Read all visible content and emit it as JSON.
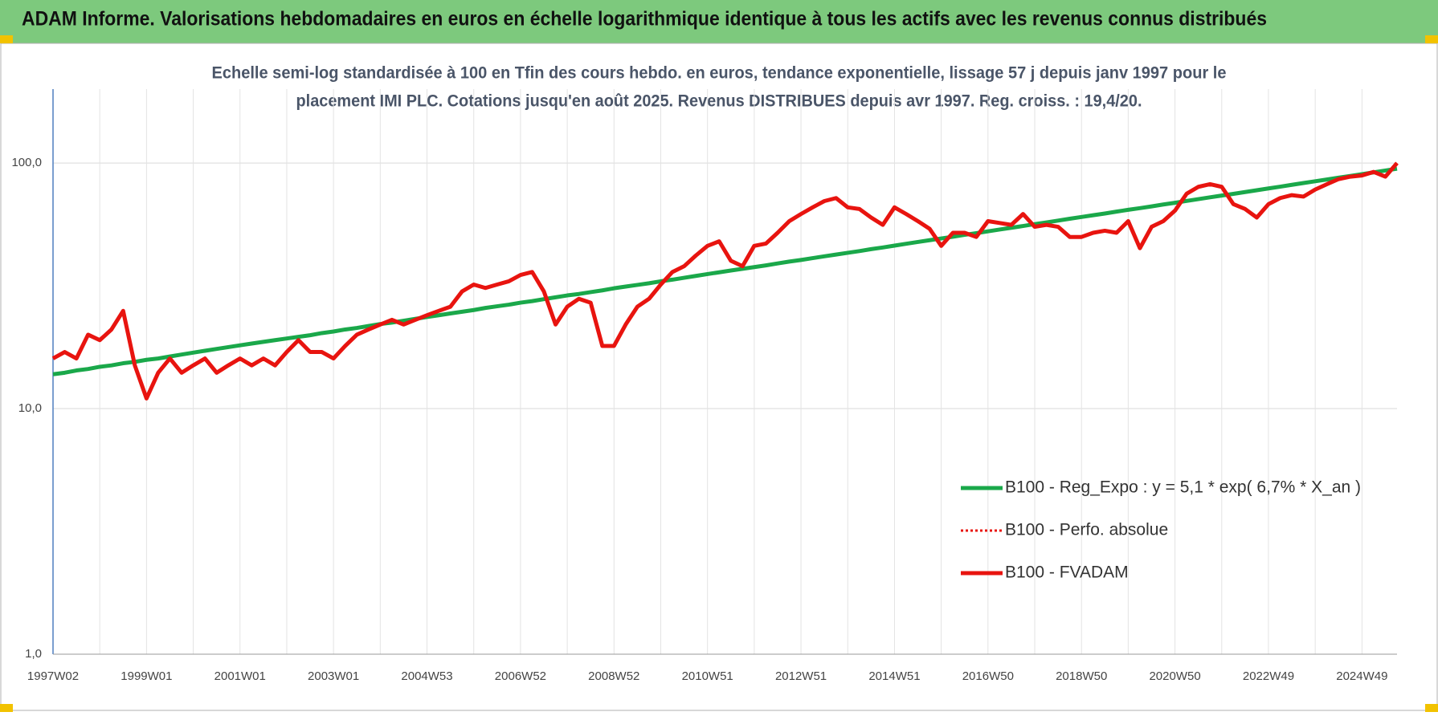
{
  "chart_data": {
    "type": "line",
    "title": "ADAM Informe. Valorisations hebdomadaires en euros en échelle logarithmique identique à tous les actifs avec les revenus connus distribués",
    "subtitle": [
      "Echelle semi-log standardisée à 100 en Tfin des cours hebdo. en euros, tendance exponentielle, lissage 57 j depuis janv 1997 pour le",
      "placement IMI PLC. Cotations jusqu'en août 2025. Revenus DISTRIBUES depuis avr 1997. Reg. croiss. : 19,4/20."
    ],
    "log_scale": true,
    "grid": true,
    "legend_position": "lower right",
    "ylim": [
      1,
      200
    ],
    "yticks": [
      {
        "value": 1,
        "label": "1,0"
      },
      {
        "value": 10,
        "label": "10,0"
      },
      {
        "value": 100,
        "label": "100,0"
      }
    ],
    "categories": [
      "1997W02",
      null,
      null,
      null,
      null,
      null,
      null,
      null,
      "1999W01",
      null,
      null,
      null,
      null,
      null,
      null,
      null,
      "2001W01",
      null,
      null,
      null,
      null,
      null,
      null,
      null,
      "2003W01",
      null,
      null,
      null,
      null,
      null,
      null,
      null,
      "2004W53",
      null,
      null,
      null,
      null,
      null,
      null,
      null,
      "2006W52",
      null,
      null,
      null,
      null,
      null,
      null,
      null,
      "2008W52",
      null,
      null,
      null,
      null,
      null,
      null,
      null,
      "2010W51",
      null,
      null,
      null,
      null,
      null,
      null,
      null,
      "2012W51",
      null,
      null,
      null,
      null,
      null,
      null,
      null,
      "2014W51",
      null,
      null,
      null,
      null,
      null,
      null,
      null,
      "2016W50",
      null,
      null,
      null,
      null,
      null,
      null,
      null,
      "2018W50",
      null,
      null,
      null,
      null,
      null,
      null,
      null,
      "2020W50",
      null,
      null,
      null,
      null,
      null,
      null,
      null,
      "2022W49",
      null,
      null,
      null,
      null,
      null,
      null,
      null,
      "2024W49",
      null,
      null,
      null
    ],
    "series": [
      {
        "name": "B100 - Reg_Expo : y = 5,1 * exp( 6,7% *  X_an )",
        "color": "#1aa84a",
        "style": "solid",
        "values": [
          13.8,
          14.0,
          14.3,
          14.5,
          14.8,
          15.0,
          15.3,
          15.5,
          15.8,
          16.0,
          16.3,
          16.6,
          16.9,
          17.2,
          17.5,
          17.8,
          18.1,
          18.4,
          18.7,
          19.0,
          19.3,
          19.6,
          19.9,
          20.3,
          20.6,
          21.0,
          21.3,
          21.7,
          22.1,
          22.4,
          22.8,
          23.2,
          23.6,
          24.0,
          24.4,
          24.8,
          25.2,
          25.7,
          26.1,
          26.5,
          27.0,
          27.4,
          27.9,
          28.4,
          28.9,
          29.3,
          29.8,
          30.3,
          30.9,
          31.4,
          31.9,
          32.4,
          33.0,
          33.5,
          34.1,
          34.7,
          35.3,
          35.9,
          36.5,
          37.1,
          37.7,
          38.3,
          39.0,
          39.7,
          40.3,
          41.0,
          41.7,
          42.4,
          43.1,
          43.8,
          44.6,
          45.3,
          46.1,
          46.9,
          47.7,
          48.5,
          49.3,
          50.1,
          51.0,
          51.8,
          52.7,
          53.6,
          54.5,
          55.4,
          56.4,
          57.3,
          58.3,
          59.3,
          60.3,
          61.3,
          62.3,
          63.4,
          64.5,
          65.5,
          66.6,
          67.8,
          68.9,
          70.1,
          71.3,
          72.5,
          73.7,
          74.9,
          76.2,
          77.5,
          78.8,
          80.1,
          81.5,
          82.9,
          84.3,
          85.7,
          87.2,
          88.6,
          90.1,
          91.6,
          93.2,
          94.8
        ]
      },
      {
        "name": "B100 - Perfo. absolue",
        "color": "#e8140f",
        "style": "dotted",
        "values": [
          16,
          17,
          16,
          20,
          19,
          21,
          25,
          15,
          11,
          14,
          16,
          14,
          15,
          16,
          14,
          15,
          16,
          15,
          16,
          15,
          17,
          19,
          17,
          17,
          16,
          18,
          20,
          21,
          22,
          23,
          22,
          23,
          24,
          25,
          26,
          30,
          32,
          31,
          32,
          33,
          35,
          36,
          30,
          22,
          26,
          28,
          27,
          18,
          18,
          22,
          26,
          28,
          32,
          36,
          38,
          42,
          46,
          48,
          40,
          38,
          46,
          47,
          52,
          58,
          62,
          66,
          70,
          72,
          66,
          65,
          60,
          56,
          66,
          62,
          58,
          54,
          46,
          52,
          52,
          50,
          58,
          57,
          56,
          62,
          55,
          56,
          55,
          50,
          50,
          52,
          53,
          52,
          58,
          45,
          55,
          58,
          64,
          75,
          80,
          82,
          80,
          68,
          65,
          60,
          68,
          72,
          74,
          73,
          78,
          82,
          86,
          88,
          89,
          92,
          88,
          100
        ]
      },
      {
        "name": "B100 - FVADAM",
        "color": "#e8140f",
        "style": "solid",
        "values": [
          16,
          17,
          16,
          20,
          19,
          21,
          25,
          15,
          11,
          14,
          16,
          14,
          15,
          16,
          14,
          15,
          16,
          15,
          16,
          15,
          17,
          19,
          17,
          17,
          16,
          18,
          20,
          21,
          22,
          23,
          22,
          23,
          24,
          25,
          26,
          30,
          32,
          31,
          32,
          33,
          35,
          36,
          30,
          22,
          26,
          28,
          27,
          18,
          18,
          22,
          26,
          28,
          32,
          36,
          38,
          42,
          46,
          48,
          40,
          38,
          46,
          47,
          52,
          58,
          62,
          66,
          70,
          72,
          66,
          65,
          60,
          56,
          66,
          62,
          58,
          54,
          46,
          52,
          52,
          50,
          58,
          57,
          56,
          62,
          55,
          56,
          55,
          50,
          50,
          52,
          53,
          52,
          58,
          45,
          55,
          58,
          64,
          75,
          80,
          82,
          80,
          68,
          65,
          60,
          68,
          72,
          74,
          73,
          78,
          82,
          86,
          88,
          89,
          92,
          88,
          100
        ]
      }
    ]
  }
}
